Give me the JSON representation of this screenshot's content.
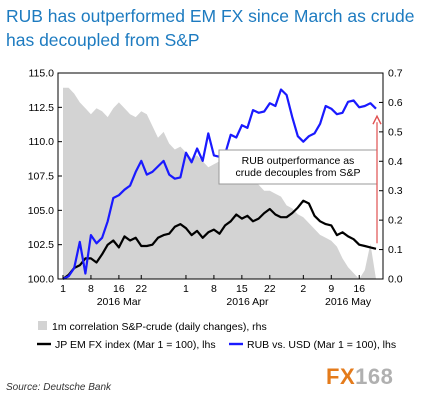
{
  "title": "RUB has outperformed EM FX since March as crude\nhas decoupled from S&P",
  "source": "Source: Deutsche Bank",
  "watermark": {
    "part1": "FX",
    "part2": "168"
  },
  "chart_data": {
    "type": "line",
    "left_axis": {
      "min": 100.0,
      "max": 115.0,
      "ticks": [
        "100.0",
        "102.5",
        "105.0",
        "107.5",
        "110.0",
        "112.5",
        "115.0"
      ]
    },
    "right_axis": {
      "min": 0.0,
      "max": 0.7,
      "ticks": [
        "0.0",
        "0.1",
        "0.2",
        "0.3",
        "0.4",
        "0.5",
        "0.6",
        "0.7"
      ]
    },
    "x_ticks": [
      {
        "i": 0,
        "label": "1"
      },
      {
        "i": 5,
        "label": "8"
      },
      {
        "i": 10,
        "label": "16"
      },
      {
        "i": 14,
        "label": "22"
      },
      {
        "i": 22,
        "label": "1"
      },
      {
        "i": 27,
        "label": "8"
      },
      {
        "i": 32,
        "label": "15"
      },
      {
        "i": 37,
        "label": "22"
      },
      {
        "i": 43,
        "label": "2"
      },
      {
        "i": 48,
        "label": "9"
      },
      {
        "i": 53,
        "label": "16"
      }
    ],
    "month_labels": [
      {
        "i": 10,
        "label": "2016 Mar"
      },
      {
        "i": 33,
        "label": "2016 Apr"
      },
      {
        "i": 51,
        "label": "2016 May"
      }
    ],
    "n_points": 57,
    "series": [
      {
        "name": "1m correlation S&P-crude (daily changes), rhs",
        "axis": "right",
        "kind": "area",
        "color": "#d3d3d3",
        "values": [
          0.65,
          0.65,
          0.63,
          0.6,
          0.58,
          0.56,
          0.58,
          0.57,
          0.55,
          0.58,
          0.6,
          0.58,
          0.56,
          0.55,
          0.57,
          0.56,
          0.52,
          0.48,
          0.5,
          0.46,
          0.44,
          0.45,
          0.43,
          0.41,
          0.42,
          0.4,
          0.38,
          0.39,
          0.4,
          0.37,
          0.35,
          0.36,
          0.36,
          0.33,
          0.34,
          0.32,
          0.3,
          0.3,
          0.29,
          0.28,
          0.25,
          0.24,
          0.22,
          0.21,
          0.19,
          0.17,
          0.15,
          0.14,
          0.13,
          0.11,
          0.07,
          0.04,
          0.02,
          0.0,
          0.03,
          0.12,
          0.0
        ]
      },
      {
        "name": "JP EM FX index (Mar 1 = 100), lhs",
        "axis": "left",
        "kind": "line",
        "color": "#000000",
        "values": [
          100.0,
          100.3,
          100.8,
          101.0,
          101.5,
          101.5,
          101.2,
          101.8,
          102.5,
          102.8,
          102.3,
          103.1,
          102.8,
          103.0,
          102.4,
          102.4,
          102.5,
          103.0,
          103.2,
          103.3,
          103.8,
          104.0,
          103.7,
          103.2,
          103.5,
          103.0,
          103.4,
          103.6,
          103.3,
          103.9,
          104.2,
          104.7,
          104.4,
          104.6,
          104.2,
          104.4,
          104.8,
          105.1,
          104.7,
          104.5,
          104.5,
          104.8,
          105.2,
          105.7,
          105.5,
          104.6,
          104.2,
          104.0,
          103.9,
          103.2,
          103.4,
          103.1,
          102.9,
          102.5,
          102.4,
          102.3,
          102.2
        ]
      },
      {
        "name": "RUB vs. USD (Mar 1 = 100), lhs",
        "axis": "left",
        "kind": "line",
        "color": "#1a1aff",
        "values": [
          100.0,
          100.2,
          100.8,
          102.7,
          100.4,
          103.2,
          102.6,
          103.0,
          104.2,
          105.9,
          106.1,
          106.5,
          106.8,
          107.8,
          108.6,
          107.6,
          107.8,
          108.2,
          108.6,
          107.6,
          107.3,
          107.4,
          109.2,
          108.5,
          109.5,
          108.6,
          110.6,
          109.0,
          108.9,
          109.1,
          110.5,
          110.3,
          111.2,
          111.0,
          112.3,
          112.1,
          112.2,
          112.8,
          112.6,
          113.8,
          113.4,
          111.8,
          110.4,
          110.0,
          110.4,
          110.6,
          111.3,
          112.6,
          112.4,
          112.0,
          112.1,
          112.9,
          113.0,
          112.5,
          112.6,
          112.8,
          112.4
        ]
      }
    ],
    "annotation": {
      "text": "RUB outperformance as\ncrude decouples from S&P"
    },
    "legend": [
      {
        "label": "1m correlation S&P-crude (daily changes), rhs",
        "marker": "square",
        "color": "#d3d3d3"
      },
      {
        "label": "JP EM FX index (Mar 1 = 100), lhs",
        "marker": "line",
        "color": "#000000"
      },
      {
        "label": "RUB vs. USD (Mar 1 = 100), lhs",
        "marker": "line",
        "color": "#1a1aff"
      }
    ],
    "arrow_color": "#e05050",
    "grid": false,
    "legend_position": "bottom"
  }
}
